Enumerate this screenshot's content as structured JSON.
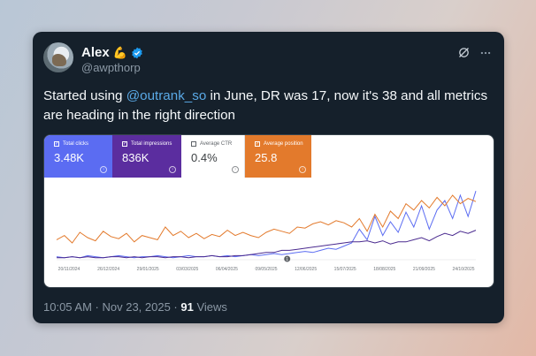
{
  "tweet": {
    "author_name": "Alex",
    "author_emoji": "💪",
    "handle": "@awpthorp",
    "text_before": "Started using ",
    "mention": "@outrank_so",
    "text_after": " in June, DR was 17, now it's 38 and all metrics are heading in the right direction",
    "timestamp": "10:05 AM · Nov 23, 2025 · ",
    "views_count": "91",
    "views_label": " Views",
    "icons": [
      "verified-badge-icon",
      "grok-icon",
      "more-options-icon"
    ],
    "accent_color": "#1d9bf0"
  },
  "metrics": [
    {
      "label": "Total clicks",
      "value": "3.48K",
      "checked": "✓",
      "color": "#5b6cf2"
    },
    {
      "label": "Total impressions",
      "value": "836K",
      "checked": "✓",
      "color": "#5b2d9f"
    },
    {
      "label": "Average CTR",
      "value": "0.4%",
      "checked": "",
      "color": "#ffffff"
    },
    {
      "label": "Average position",
      "value": "25.8",
      "checked": "✓",
      "color": "#e37a2c"
    }
  ],
  "chart_data": {
    "type": "line",
    "x_tick_labels": [
      "20/11/2024",
      "26/12/2024",
      "29/01/2025",
      "03/03/2025",
      "06/04/2025",
      "09/05/2025",
      "12/06/2025",
      "15/07/2025",
      "18/08/2025",
      "21/09/2025",
      "24/10/2025"
    ],
    "annotation_marker": "1",
    "series": [
      {
        "name": "Total clicks",
        "color": "#5b6cf2",
        "values": [
          2,
          1,
          2,
          1,
          3,
          2,
          1,
          2,
          3,
          2,
          1,
          2,
          2,
          3,
          2,
          1,
          2,
          3,
          2,
          2,
          3,
          2,
          3,
          2,
          3,
          4,
          3,
          4,
          5,
          4,
          5,
          6,
          7,
          6,
          8,
          10,
          9,
          12,
          15,
          28,
          18,
          40,
          22,
          35,
          25,
          44,
          30,
          50,
          28,
          46,
          55,
          38,
          60,
          40,
          64
        ]
      },
      {
        "name": "Total impressions",
        "color": "#4a2a8f",
        "values": [
          1,
          1,
          2,
          1,
          2,
          1,
          1,
          2,
          2,
          1,
          2,
          1,
          2,
          2,
          1,
          2,
          2,
          1,
          2,
          2,
          3,
          2,
          2,
          3,
          3,
          4,
          5,
          6,
          6,
          8,
          8,
          9,
          10,
          11,
          12,
          13,
          14,
          15,
          16,
          16,
          17,
          15,
          17,
          14,
          16,
          16,
          18,
          20,
          17,
          21,
          24,
          22,
          26,
          24,
          27
        ]
      },
      {
        "name": "Average position",
        "color": "#e37a2c",
        "values": [
          18,
          22,
          15,
          25,
          20,
          17,
          26,
          21,
          19,
          24,
          16,
          22,
          20,
          18,
          30,
          22,
          26,
          20,
          24,
          19,
          23,
          21,
          27,
          22,
          25,
          22,
          20,
          25,
          28,
          26,
          24,
          30,
          29,
          33,
          35,
          32,
          36,
          34,
          30,
          38,
          26,
          42,
          30,
          45,
          38,
          52,
          46,
          55,
          48,
          58,
          50,
          60,
          52,
          57,
          54
        ]
      }
    ],
    "ylim": [
      0,
      70
    ],
    "grid": false,
    "legend": "top metric cards"
  }
}
